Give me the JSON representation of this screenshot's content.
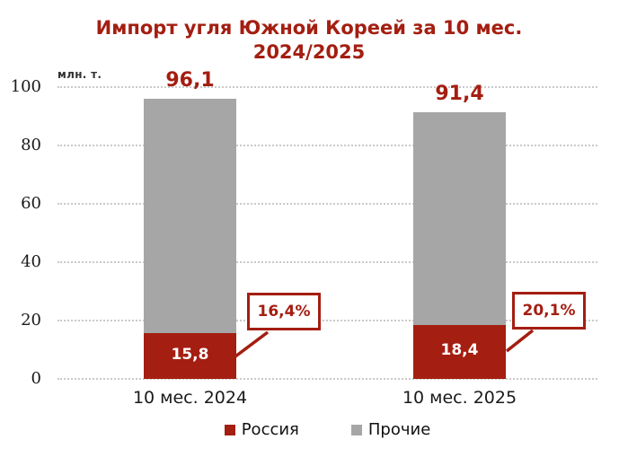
{
  "title": "Импорт угля Южной Кореей за 10 мес. 2024/2025",
  "axis_unit": "млн. т.",
  "colors": {
    "accent_red": "#a41e11",
    "bar_russia": "#a41e11",
    "bar_others": "#a6a6a6",
    "gridline": "#c9c9c9",
    "text": "#1a1a1a"
  },
  "chart_data": {
    "type": "bar",
    "stacked": true,
    "title": "Импорт угля Южной Кореей за 10 мес. 2024/2025",
    "ylabel": "млн. т.",
    "xlabel": "",
    "ylim": [
      0,
      100
    ],
    "yticks": [
      0,
      20,
      40,
      60,
      80,
      100
    ],
    "grid": "horizontal-dotted",
    "legend_position": "bottom",
    "categories": [
      "10 мес. 2024",
      "10 мес. 2025"
    ],
    "series": [
      {
        "name": "Россия",
        "color": "#a41e11",
        "values": [
          15.8,
          18.4
        ]
      },
      {
        "name": "Прочие",
        "color": "#a6a6a6",
        "values": [
          80.3,
          73.0
        ]
      }
    ],
    "totals": [
      96.1,
      91.4
    ],
    "total_labels": [
      "96,1",
      "91,4"
    ],
    "russia_segment_labels": [
      "15,8",
      "18,4"
    ],
    "share_callout_labels": [
      "16,4%",
      "20,1%"
    ]
  },
  "legend": [
    {
      "label": "Россия",
      "color": "#a41e11"
    },
    {
      "label": "Прочие",
      "color": "#a6a6a6"
    }
  ]
}
